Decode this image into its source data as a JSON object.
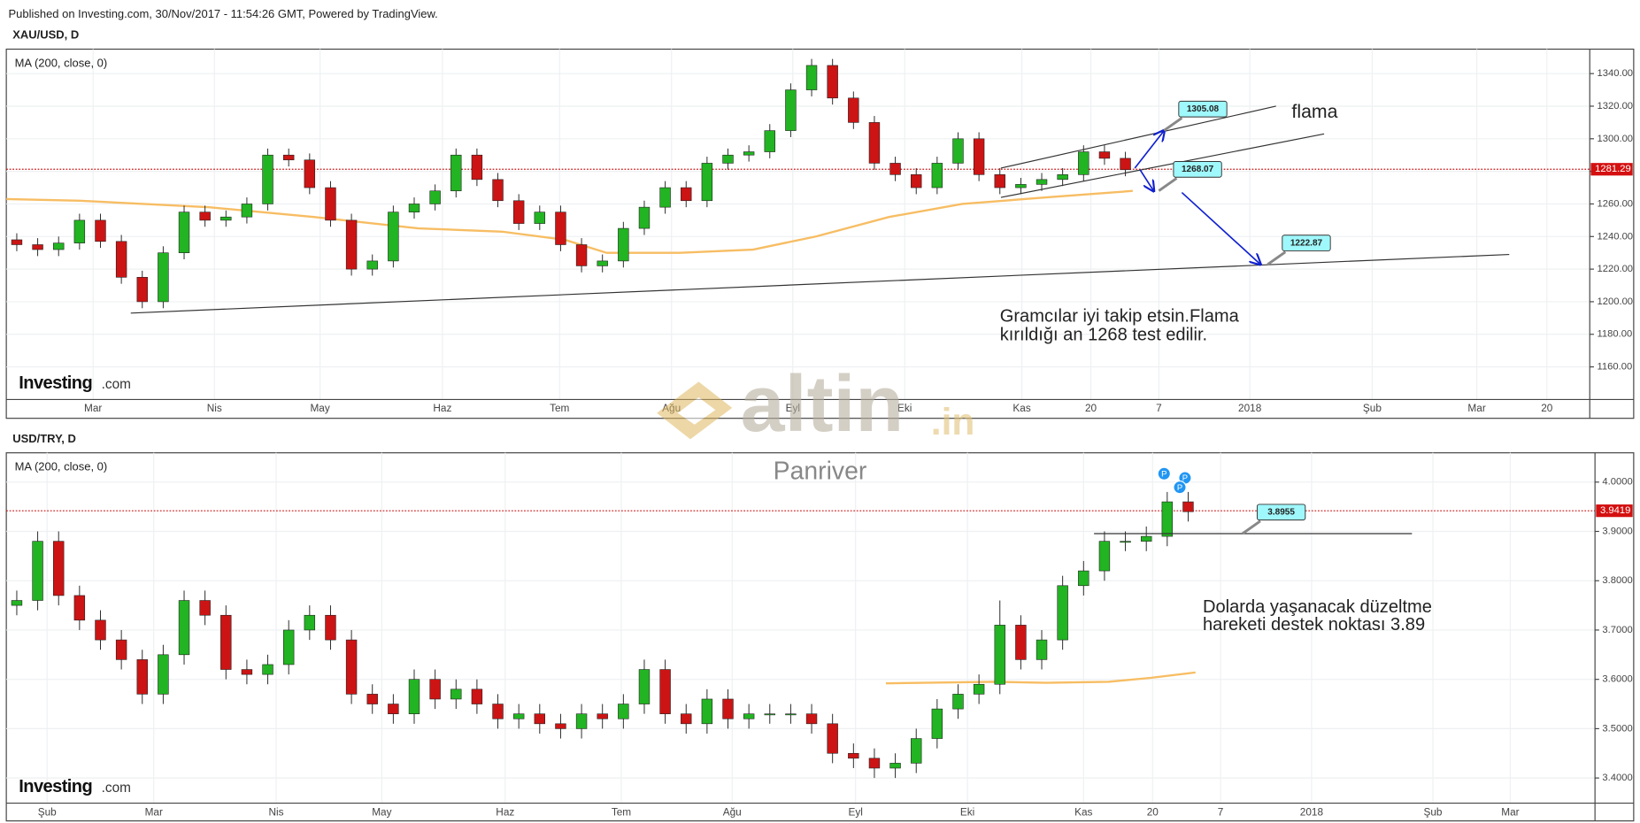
{
  "header": "Published on Investing.com, 30/Nov/2017 - 11:54:26 GMT, Powered by TradingView.",
  "logo": {
    "name": "Investing",
    "suffix": ".com"
  },
  "watermark": {
    "brand": "altin",
    "suffix": ".in",
    "author": "Panriver"
  },
  "chart_data": [
    {
      "type": "candlestick",
      "title": "XAU/USD, D",
      "up_color": "#22b422",
      "down_color": "#cc1414",
      "grid": true,
      "xlim": [
        0,
        75.7
      ],
      "xticks": [
        {
          "value": 4.15,
          "label": "Mar"
        },
        {
          "value": 9.95,
          "label": "Nis"
        },
        {
          "value": 15,
          "label": "May"
        },
        {
          "value": 20.85,
          "label": "Haz"
        },
        {
          "value": 26.45,
          "label": "Tem"
        },
        {
          "value": 31.8,
          "label": "Ağu"
        },
        {
          "value": 37.6,
          "label": "Eyl"
        },
        {
          "value": 42.95,
          "label": "Eki"
        },
        {
          "value": 48.55,
          "label": "Kas"
        },
        {
          "value": 51.85,
          "label": "20"
        },
        {
          "value": 55.1,
          "label": "7"
        },
        {
          "value": 59.45,
          "label": "2018"
        },
        {
          "value": 65.3,
          "label": "Şub"
        },
        {
          "value": 70.3,
          "label": "Mar"
        },
        {
          "value": 73.65,
          "label": "20"
        }
      ],
      "ylim": [
        1140,
        1355
      ],
      "yticks": [
        {
          "value": 1160,
          "label": "1160.00"
        },
        {
          "value": 1180,
          "label": "1180.00"
        },
        {
          "value": 1200,
          "label": "1200.00"
        },
        {
          "value": 1220,
          "label": "1220.00"
        },
        {
          "value": 1240,
          "label": "1240.00"
        },
        {
          "value": 1260,
          "label": "1260.00"
        },
        {
          "value": 1280,
          "label": "1280.00"
        },
        {
          "value": 1300,
          "label": "1300.00"
        },
        {
          "value": 1320,
          "label": "1320.00"
        },
        {
          "value": 1340,
          "label": "1340.00"
        }
      ],
      "open": [
        1238,
        1235,
        1232,
        1236,
        1250,
        1237,
        1215,
        1200,
        1230,
        1255,
        1250,
        1252,
        1260,
        1290,
        1287,
        1270,
        1250,
        1220,
        1225,
        1255,
        1260,
        1268,
        1290,
        1275,
        1262,
        1248,
        1255,
        1235,
        1222,
        1225,
        1245,
        1258,
        1270,
        1262,
        1285,
        1290,
        1292,
        1305,
        1330,
        1345,
        1325,
        1310,
        1285,
        1278,
        1270,
        1285,
        1300,
        1278,
        1270,
        1272,
        1275,
        1278,
        1292,
        1288
      ],
      "high": [
        1242,
        1239,
        1240,
        1254,
        1254,
        1241,
        1219,
        1234,
        1259,
        1259,
        1256,
        1264,
        1294,
        1294,
        1291,
        1274,
        1254,
        1229,
        1259,
        1264,
        1272,
        1294,
        1294,
        1279,
        1266,
        1259,
        1259,
        1239,
        1229,
        1249,
        1262,
        1274,
        1274,
        1289,
        1294,
        1296,
        1309,
        1334,
        1349,
        1349,
        1329,
        1314,
        1289,
        1282,
        1289,
        1304,
        1304,
        1282,
        1276,
        1279,
        1282,
        1296,
        1296,
        1292
      ],
      "low": [
        1231,
        1228,
        1228,
        1232,
        1233,
        1211,
        1196,
        1196,
        1226,
        1246,
        1246,
        1248,
        1256,
        1283,
        1266,
        1246,
        1216,
        1216,
        1221,
        1251,
        1256,
        1264,
        1271,
        1258,
        1244,
        1244,
        1231,
        1218,
        1218,
        1221,
        1241,
        1254,
        1258,
        1258,
        1281,
        1286,
        1288,
        1301,
        1326,
        1321,
        1306,
        1281,
        1274,
        1266,
        1266,
        1281,
        1274,
        1266,
        1266,
        1268,
        1271,
        1274,
        1284,
        1277
      ],
      "close": [
        1235,
        1232,
        1236,
        1250,
        1237,
        1215,
        1200,
        1230,
        1255,
        1250,
        1252,
        1260,
        1290,
        1287,
        1270,
        1250,
        1220,
        1225,
        1255,
        1260,
        1268,
        1290,
        1275,
        1262,
        1248,
        1255,
        1235,
        1222,
        1225,
        1245,
        1258,
        1270,
        1262,
        1285,
        1290,
        1292,
        1305,
        1330,
        1345,
        1325,
        1310,
        1285,
        1278,
        1270,
        1285,
        1300,
        1278,
        1270,
        1272,
        1275,
        1278,
        1292,
        1288,
        1281
      ],
      "last_price": 1281.29,
      "ma": {
        "name": "MA (200, close, 0)",
        "color": "#f7bd63",
        "x": [
          0,
          3.5,
          9.7,
          14.7,
          19.7,
          23.7,
          26.7,
          28.7,
          32.2,
          35.7,
          38.7,
          42.2,
          45.7,
          49.7,
          53.85
        ],
        "values": [
          1263,
          1262,
          1258,
          1252,
          1245,
          1243,
          1238,
          1230,
          1230,
          1232,
          1240,
          1252,
          1260,
          1264,
          1268
        ]
      },
      "lines": [
        {
          "x": [
            5.95,
            71.85
          ],
          "y": [
            1193,
            1229
          ]
        },
        {
          "x": [
            47.55,
            60.7
          ],
          "y": [
            1282,
            1320
          ]
        },
        {
          "x": [
            47.55,
            63
          ],
          "y": [
            1264,
            1303
          ]
        }
      ],
      "arrows": [
        {
          "x": [
            53.95,
            55.35
          ],
          "y": [
            1282,
            1305
          ]
        },
        {
          "x": [
            54.2,
            54.85
          ],
          "y": [
            1281,
            1268
          ]
        },
        {
          "x": [
            56.2,
            59.95
          ],
          "y": [
            1267,
            1223
          ]
        }
      ],
      "callouts": [
        {
          "x": 55.35,
          "value": 1305.08
        },
        {
          "x": 55.1,
          "value": 1268.07
        },
        {
          "x": 60.3,
          "value": 1222.87
        }
      ],
      "annotations": [
        "flama"
      ],
      "notes": [
        "Gramcılar iyi takip etsin.Flama",
        "kırıldığı an 1268 test edilir."
      ]
    },
    {
      "type": "candlestick",
      "title": "USD/TRY, D",
      "up_color": "#22b422",
      "down_color": "#cc1414",
      "grid": true,
      "xlim": [
        0,
        75.95
      ],
      "xticks": [
        {
          "value": 1.95,
          "label": "Şub"
        },
        {
          "value": 7.05,
          "label": "Mar"
        },
        {
          "value": 12.9,
          "label": "Nis"
        },
        {
          "value": 17.95,
          "label": "May"
        },
        {
          "value": 23.85,
          "label": "Haz"
        },
        {
          "value": 29.4,
          "label": "Tem"
        },
        {
          "value": 34.7,
          "label": "Ağu"
        },
        {
          "value": 40.6,
          "label": "Eyl"
        },
        {
          "value": 45.95,
          "label": "Eki"
        },
        {
          "value": 51.5,
          "label": "Kas"
        },
        {
          "value": 54.8,
          "label": "20"
        },
        {
          "value": 58.05,
          "label": "7"
        },
        {
          "value": 62.4,
          "label": "2018"
        },
        {
          "value": 68.2,
          "label": "Şub"
        },
        {
          "value": 71.9,
          "label": "Mar"
        }
      ],
      "ylim": [
        3.349,
        4.0594
      ],
      "yticks": [
        {
          "value": 3.4,
          "label": "3.4000"
        },
        {
          "value": 3.5,
          "label": "3.5000"
        },
        {
          "value": 3.6,
          "label": "3.6000"
        },
        {
          "value": 3.7,
          "label": "3.7000"
        },
        {
          "value": 3.8,
          "label": "3.8000"
        },
        {
          "value": 3.9,
          "label": "3.9000"
        },
        {
          "value": 4,
          "label": "4.0000"
        }
      ],
      "open": [
        3.75,
        3.76,
        3.88,
        3.77,
        3.72,
        3.68,
        3.64,
        3.57,
        3.65,
        3.76,
        3.73,
        3.62,
        3.61,
        3.63,
        3.7,
        3.73,
        3.68,
        3.57,
        3.55,
        3.53,
        3.6,
        3.56,
        3.58,
        3.55,
        3.52,
        3.53,
        3.51,
        3.5,
        3.53,
        3.52,
        3.55,
        3.62,
        3.53,
        3.51,
        3.56,
        3.52,
        3.53,
        3.53,
        3.53,
        3.51,
        3.45,
        3.44,
        3.42,
        3.43,
        3.48,
        3.54,
        3.57,
        3.59,
        3.71,
        3.64,
        3.68,
        3.79,
        3.82,
        3.88,
        3.88,
        3.89,
        3.96
      ],
      "high": [
        3.78,
        3.9,
        3.9,
        3.79,
        3.74,
        3.7,
        3.66,
        3.67,
        3.78,
        3.78,
        3.75,
        3.64,
        3.65,
        3.72,
        3.75,
        3.75,
        3.7,
        3.59,
        3.57,
        3.62,
        3.62,
        3.6,
        3.6,
        3.57,
        3.55,
        3.55,
        3.53,
        3.55,
        3.55,
        3.57,
        3.64,
        3.64,
        3.55,
        3.58,
        3.58,
        3.55,
        3.55,
        3.55,
        3.55,
        3.53,
        3.47,
        3.46,
        3.45,
        3.5,
        3.56,
        3.59,
        3.61,
        3.76,
        3.73,
        3.7,
        3.81,
        3.84,
        3.9,
        3.9,
        3.91,
        3.98,
        3.98
      ],
      "low": [
        3.73,
        3.74,
        3.75,
        3.7,
        3.66,
        3.62,
        3.55,
        3.55,
        3.63,
        3.71,
        3.6,
        3.59,
        3.59,
        3.61,
        3.68,
        3.66,
        3.55,
        3.53,
        3.51,
        3.51,
        3.54,
        3.54,
        3.53,
        3.5,
        3.5,
        3.49,
        3.48,
        3.48,
        3.5,
        3.5,
        3.53,
        3.51,
        3.49,
        3.49,
        3.5,
        3.5,
        3.51,
        3.51,
        3.49,
        3.43,
        3.42,
        3.4,
        3.4,
        3.41,
        3.46,
        3.52,
        3.55,
        3.57,
        3.62,
        3.62,
        3.66,
        3.77,
        3.8,
        3.86,
        3.86,
        3.87,
        3.92
      ],
      "close": [
        3.76,
        3.88,
        3.77,
        3.72,
        3.68,
        3.64,
        3.57,
        3.65,
        3.76,
        3.73,
        3.62,
        3.61,
        3.63,
        3.7,
        3.73,
        3.68,
        3.57,
        3.55,
        3.53,
        3.6,
        3.56,
        3.58,
        3.55,
        3.52,
        3.53,
        3.51,
        3.5,
        3.53,
        3.52,
        3.55,
        3.62,
        3.53,
        3.51,
        3.56,
        3.52,
        3.53,
        3.53,
        3.53,
        3.51,
        3.45,
        3.44,
        3.42,
        3.43,
        3.48,
        3.54,
        3.57,
        3.59,
        3.71,
        3.64,
        3.68,
        3.79,
        3.82,
        3.88,
        3.88,
        3.89,
        3.96,
        3.94
      ],
      "last_price": 3.9419,
      "ma": {
        "name": "MA (200, close, 0)",
        "color": "#f7bd63",
        "x": [
          42.05,
          47.2,
          49.7,
          52.7,
          54.7,
          56.85
        ],
        "values": [
          3.592,
          3.595,
          3.593,
          3.595,
          3.603,
          3.614
        ]
      },
      "lines": [
        {
          "x": [
            52,
            67.2
          ],
          "y": [
            3.8955,
            3.8955
          ]
        }
      ],
      "arrows": [],
      "callouts": [
        {
          "x": 59.1,
          "value": 3.8955
        }
      ],
      "events": [
        "P",
        "P",
        "P"
      ],
      "notes": [
        "Dolarda yaşanacak düzeltme",
        "hareketi destek noktası 3.89"
      ]
    }
  ]
}
